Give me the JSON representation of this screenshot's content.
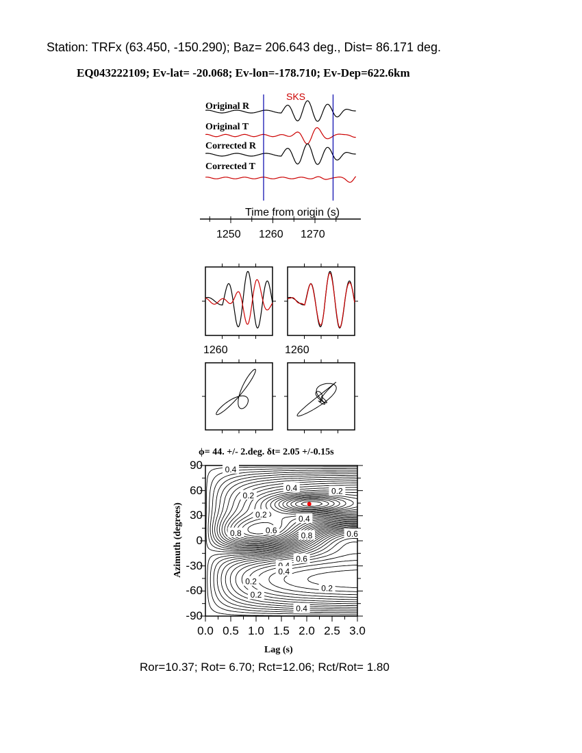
{
  "header": {
    "station_line": "Station: TRFx (63.450, -150.290); Baz=  206.643 deg., Dist=   86.171 deg.",
    "event_line": "EQ043222109; Ev-lat= -20.068; Ev-lon=-178.710; Ev-Dep=622.6km"
  },
  "footer": {
    "ratios": "Ror=10.37; Rot= 6.70; Rct=12.06; Rct/Rot= 1.80"
  },
  "colors": {
    "radial": "#000000",
    "transverse": "#cc0000",
    "window": "#0000aa",
    "phase": "#cc0000",
    "best_fit": "#ff0000"
  },
  "chart_data": [
    {
      "type": "line",
      "phase_label": "SKS",
      "xlabel": "Time from origin (s)",
      "xticks": [
        "1250",
        "1260",
        "1270"
      ],
      "xlim": [
        1244,
        1280
      ],
      "window": [
        1257.8,
        1274.3
      ],
      "trace_labels": [
        "Original R",
        "Original T",
        "Corrected R",
        "Corrected T"
      ]
    },
    {
      "type": "line",
      "panels": [
        "waveform-overlay-original",
        "waveform-overlay-corrected"
      ],
      "tick_labels": [
        "1260",
        "1260"
      ]
    },
    {
      "type": "scatter",
      "panels": [
        "particle-motion-original",
        "particle-motion-corrected"
      ]
    },
    {
      "type": "heatmap",
      "title": "ϕ= 44. +/- 2.deg. δt= 2.05 +/-0.15s",
      "xlabel": "Lag (s)",
      "ylabel": "Azimuth (degrees)",
      "xlim": [
        0,
        3
      ],
      "ylim": [
        -90,
        90
      ],
      "xticks": [
        "0.0",
        "0.5",
        "1.0",
        "1.5",
        "2.0",
        "2.5",
        "3.0"
      ],
      "yticks": [
        "90",
        "60",
        "30",
        "0",
        "-30",
        "-60",
        "-90"
      ],
      "best_fit": {
        "lag": 2.05,
        "azimuth": 44
      },
      "contour_labels": [
        "0.4",
        "0.4",
        "0.2",
        "0.2",
        "0.2",
        "0.4",
        "0.6",
        "0.8",
        "0.6",
        "0.8",
        "0.6",
        "0.4",
        "0.4",
        "0.2",
        "0.2",
        "0.2",
        "0.4"
      ]
    }
  ]
}
